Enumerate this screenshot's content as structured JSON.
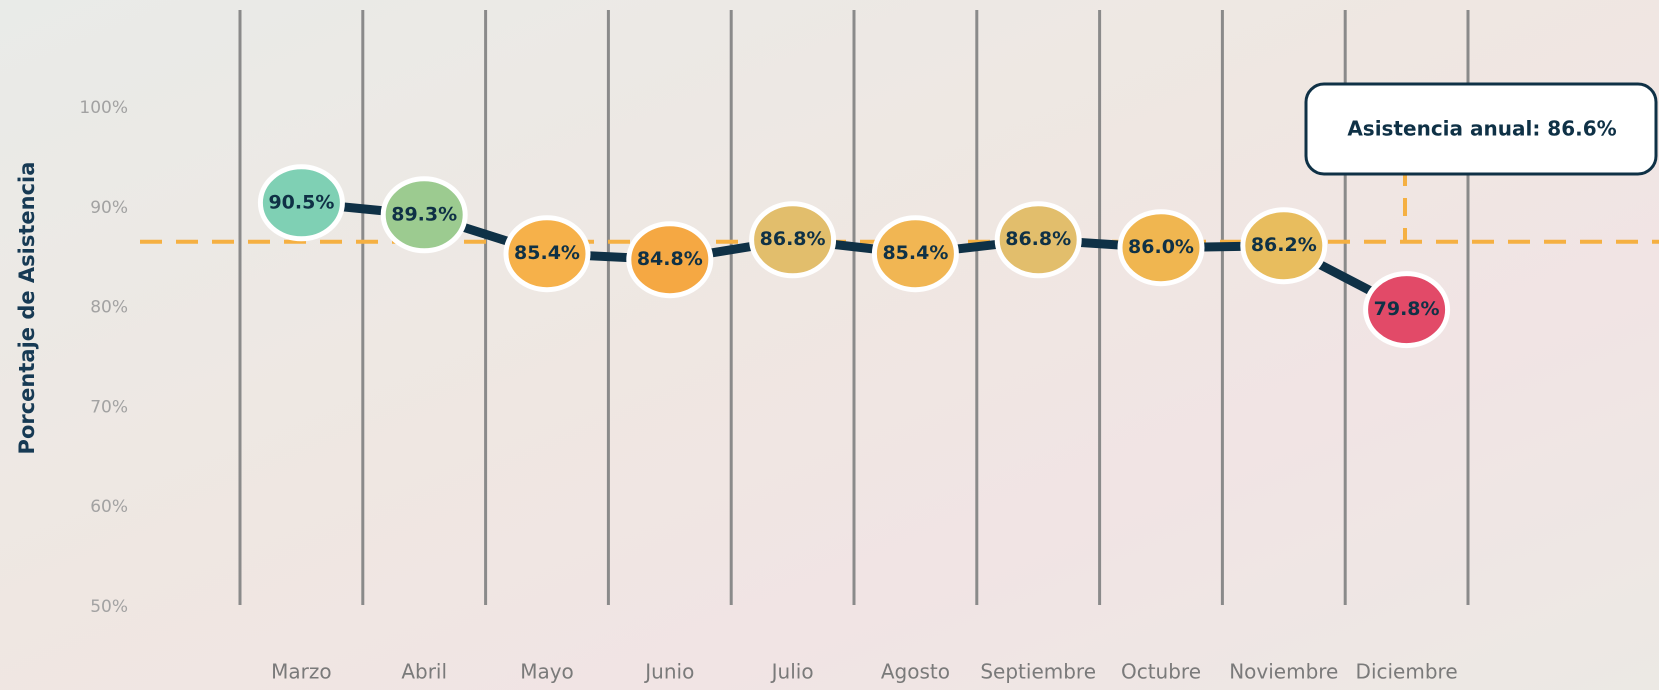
{
  "chart_data": {
    "type": "line",
    "y_label": "Porcentaje de Asistencia",
    "categories": [
      "Marzo",
      "Abril",
      "Mayo",
      "Junio",
      "Julio",
      "Agosto",
      "Septiembre",
      "Octubre",
      "Noviembre",
      "Diciembre"
    ],
    "values": [
      90.5,
      89.3,
      85.4,
      84.8,
      86.8,
      85.4,
      86.8,
      86.0,
      86.2,
      79.8
    ],
    "value_labels": [
      "90.5%",
      "89.3%",
      "85.4%",
      "84.8%",
      "86.8%",
      "85.4%",
      "86.8%",
      "86.0%",
      "86.2%",
      "79.8%"
    ],
    "colors": [
      "#7fd0b4",
      "#9ccb90",
      "#f6b14a",
      "#f5a843",
      "#e2be6c",
      "#f1b653",
      "#e2be6c",
      "#f0b650",
      "#e8bd5e",
      "#e24a68"
    ],
    "line_color": "#0f3146",
    "ylim": [
      50,
      100
    ],
    "yticks": [
      {
        "value": 50,
        "label": "50%"
      },
      {
        "value": 60,
        "label": "60%"
      },
      {
        "value": 70,
        "label": "70%"
      },
      {
        "value": 80,
        "label": "80%"
      },
      {
        "value": 90,
        "label": "90%"
      },
      {
        "value": 100,
        "label": "100%"
      }
    ],
    "reference_line": {
      "value": 86.6,
      "label": "Asistencia anual: 86.6%",
      "color": "#f5b042"
    }
  }
}
